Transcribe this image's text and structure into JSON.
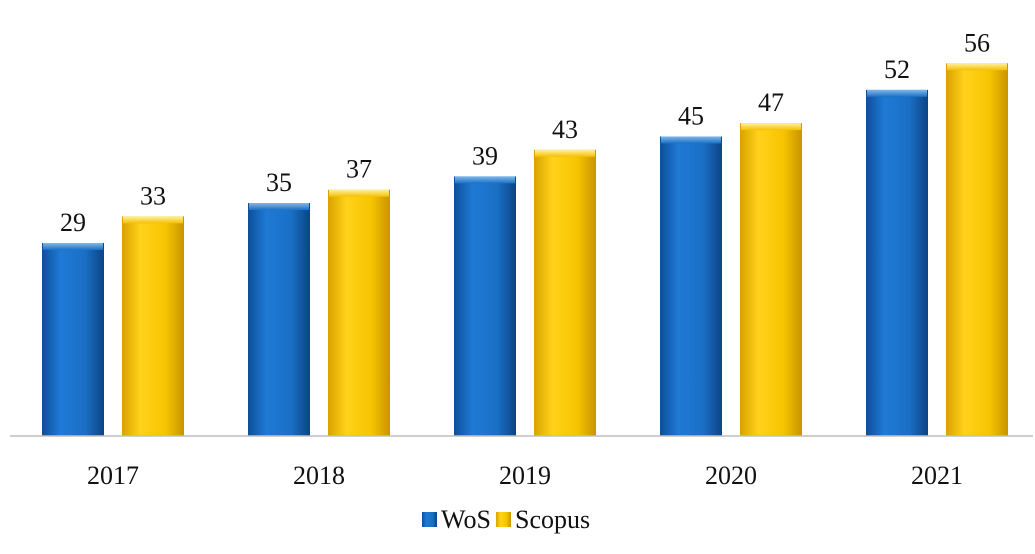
{
  "chart_data": {
    "type": "bar",
    "categories": [
      "2017",
      "2018",
      "2019",
      "2020",
      "2021"
    ],
    "series": [
      {
        "name": "WoS",
        "values": [
          29,
          35,
          39,
          45,
          52
        ],
        "color": "#1a73c9"
      },
      {
        "name": "Scopus",
        "values": [
          33,
          37,
          43,
          47,
          56
        ],
        "color": "#f5c000"
      }
    ],
    "title": "",
    "xlabel": "",
    "ylabel": "",
    "ylim": [
      0,
      60
    ],
    "grid": false,
    "legend": "bottom-center",
    "data_labels": true
  }
}
